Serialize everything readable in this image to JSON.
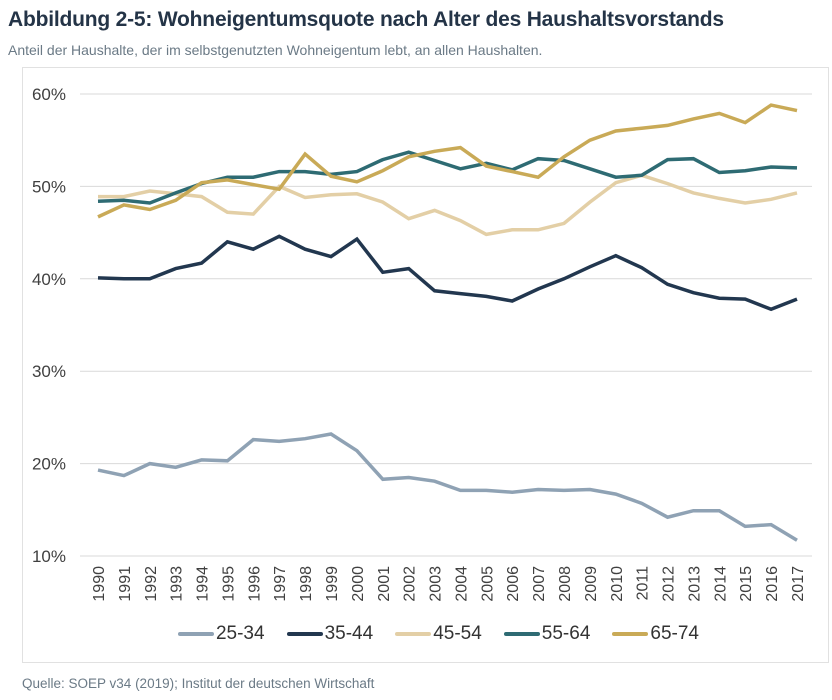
{
  "header": {
    "title": "Abbildung 2-5: Wohneigentumsquote nach Alter des Haushaltsvorstands",
    "subtitle": "Anteil der Haushalte, der im selbstgenutzten Wohneigentum lebt, an allen Haushalten."
  },
  "footer": {
    "source": "Quelle: SOEP v34 (2019); Institut der deutschen Wirtschaft"
  },
  "chart_data": {
    "type": "line",
    "title": "Abbildung 2-5: Wohneigentumsquote nach Alter des Haushaltsvorstands",
    "subtitle": "Anteil der Haushalte, der im selbstgenutzten Wohneigentum lebt, an allen Haushalten.",
    "xlabel": "",
    "ylabel": "",
    "ylim": [
      10,
      60
    ],
    "yticks": [
      10,
      20,
      30,
      40,
      50,
      60
    ],
    "ytick_labels": [
      "10%",
      "20%",
      "30%",
      "40%",
      "50%",
      "60%"
    ],
    "grid": "horizontal",
    "legend_position": "bottom",
    "x": [
      "1990",
      "1991",
      "1992",
      "1993",
      "1994",
      "1995",
      "1996",
      "1997",
      "1998",
      "1999",
      "2000",
      "2001",
      "2002",
      "2003",
      "2004",
      "2005",
      "2006",
      "2007",
      "2008",
      "2009",
      "2010",
      "2011",
      "2012",
      "2013",
      "2014",
      "2015",
      "2016",
      "2017"
    ],
    "series": [
      {
        "name": "25-34",
        "color": "#8fa2b4",
        "values": [
          19.3,
          18.7,
          20.0,
          19.6,
          20.4,
          20.3,
          22.6,
          22.4,
          22.7,
          23.2,
          21.4,
          18.3,
          18.5,
          18.1,
          17.1,
          17.1,
          16.9,
          17.2,
          17.1,
          17.2,
          16.7,
          15.7,
          14.2,
          14.9,
          14.9,
          13.2,
          13.4,
          11.7
        ]
      },
      {
        "name": "35-44",
        "color": "#22374f",
        "values": [
          40.1,
          40.0,
          40.0,
          41.1,
          41.7,
          44.0,
          43.2,
          44.6,
          43.2,
          42.4,
          44.3,
          40.7,
          41.1,
          38.7,
          38.4,
          38.1,
          37.6,
          38.9,
          40.0,
          41.3,
          42.5,
          41.2,
          39.4,
          38.5,
          37.9,
          37.8,
          36.7,
          37.8
        ]
      },
      {
        "name": "45-54",
        "color": "#e3cfa6",
        "values": [
          48.9,
          48.9,
          49.5,
          49.2,
          48.9,
          47.2,
          47.0,
          50.0,
          48.8,
          49.1,
          49.2,
          48.3,
          46.5,
          47.4,
          46.3,
          44.8,
          45.3,
          45.3,
          46.0,
          48.3,
          50.4,
          51.2,
          50.3,
          49.3,
          48.7,
          48.2,
          48.6,
          49.3
        ]
      },
      {
        "name": "55-64",
        "color": "#2e6b73",
        "values": [
          48.4,
          48.5,
          48.2,
          49.3,
          50.3,
          51.0,
          51.0,
          51.6,
          51.6,
          51.3,
          51.6,
          52.9,
          53.7,
          52.8,
          51.9,
          52.5,
          51.8,
          53.0,
          52.8,
          51.9,
          51.0,
          51.2,
          52.9,
          53.0,
          51.5,
          51.7,
          52.1,
          52.0
        ]
      },
      {
        "name": "65-74",
        "color": "#c9aa57",
        "values": [
          46.7,
          48.0,
          47.5,
          48.5,
          50.4,
          50.7,
          50.2,
          49.7,
          53.5,
          51.1,
          50.5,
          51.7,
          53.2,
          53.8,
          54.2,
          52.2,
          51.6,
          51.0,
          53.2,
          55.0,
          56.0,
          56.3,
          56.6,
          57.3,
          57.9,
          56.9,
          58.8,
          58.2
        ]
      }
    ]
  }
}
